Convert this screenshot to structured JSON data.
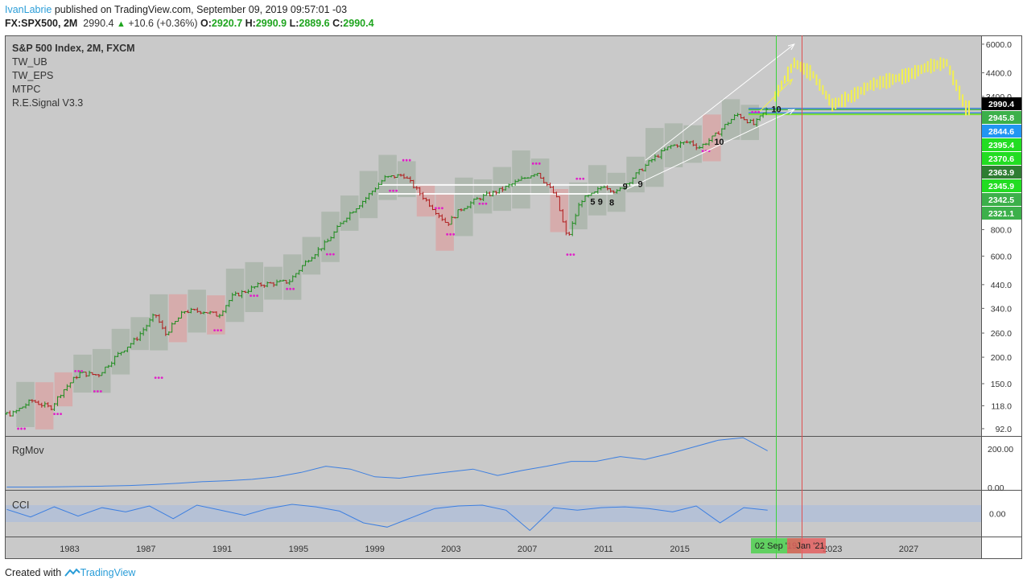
{
  "header": {
    "author": "IvanLabrie",
    "published_text": "published on TradingView.com, September 09, 2019 09:57:01 -03",
    "symbol": "FX:SPX500, 2M",
    "last_price": "2990.4",
    "change": "+10.6 (+0.36%)",
    "o_label": "O:",
    "o_value": "2920.7",
    "h_label": "H:",
    "h_value": "2990.9",
    "l_label": "L:",
    "l_value": "2889.6",
    "c_label": "C:",
    "c_value": "2990.4"
  },
  "legend": {
    "title": "S&P 500 Index, 2M, FXCM",
    "indicators": [
      "TW_UB",
      "TW_EPS",
      "MTPC",
      "R.E.Signal V3.3"
    ]
  },
  "panes": {
    "rgmov_label": "RgMov",
    "cci_label": "CCI"
  },
  "axis_tags": {
    "crosshair_date": "02 Sep '19",
    "end_date": "Jan '21"
  },
  "footer": {
    "created_with": "Created with",
    "brand": "TradingView"
  },
  "colors": {
    "background": "#c9c9c9",
    "up_bar": "#1e8c1e",
    "down_bar": "#b01e1e",
    "projection": "#f2f050",
    "signal_dots": "#e020c8",
    "line_blue": "#3d7fe0",
    "cci_band": "#b2bfd8"
  },
  "chart_data": {
    "type": "line",
    "title": "S&P 500 Index, 2M, FXCM",
    "x_range": [
      1979.6,
      2030.8
    ],
    "y_scale": "log",
    "y_range": [
      85,
      6600
    ],
    "x_ticks": [
      "1983",
      "1987",
      "1991",
      "1995",
      "1999",
      "2003",
      "2007",
      "2011",
      "2015",
      "2023",
      "2027"
    ],
    "y_ticks": [
      "6000.0",
      "4400.0",
      "3400.0",
      "2000.0",
      "800.0",
      "600.0",
      "440.0",
      "340.0",
      "260.0",
      "200.0",
      "150.0",
      "118.0",
      "92.0"
    ],
    "price_labels": [
      {
        "value": "2990.4",
        "y": 2990.4,
        "color": "#000000"
      },
      {
        "value": "2945.8",
        "y": 2945.8,
        "color": "#3cb04a"
      },
      {
        "value": "2844.6",
        "y": 2844.6,
        "color": "#2196f3"
      },
      {
        "value": "2395.4",
        "y": 2395.4,
        "color": "#22dd22"
      },
      {
        "value": "2370.6",
        "y": 2370.6,
        "color": "#22dd22"
      },
      {
        "value": "2363.9",
        "y": 2363.9,
        "color": "#2e7d32"
      },
      {
        "value": "2345.9",
        "y": 2345.9,
        "color": "#22dd22"
      },
      {
        "value": "2342.5",
        "y": 2342.5,
        "color": "#3cb04a"
      },
      {
        "value": "2321.1",
        "y": 2321.1,
        "color": "#3cb04a"
      }
    ],
    "series": [
      {
        "name": "FX:SPX500",
        "points": [
          [
            1980.0,
            108
          ],
          [
            1981.0,
            125
          ],
          [
            1982.0,
            115
          ],
          [
            1982.6,
            138
          ],
          [
            1983.5,
            168
          ],
          [
            1984.5,
            165
          ],
          [
            1985.5,
            205
          ],
          [
            1986.5,
            245
          ],
          [
            1987.5,
            320
          ],
          [
            1988.0,
            255
          ],
          [
            1989.0,
            330
          ],
          [
            1990.0,
            330
          ],
          [
            1990.8,
            315
          ],
          [
            1991.5,
            385
          ],
          [
            1993.0,
            440
          ],
          [
            1994.5,
            455
          ],
          [
            1995.5,
            580
          ],
          [
            1996.5,
            700
          ],
          [
            1997.5,
            920
          ],
          [
            1998.5,
            1120
          ],
          [
            1999.5,
            1400
          ],
          [
            2000.5,
            1450
          ],
          [
            2001.5,
            1150
          ],
          [
            2002.8,
            850
          ],
          [
            2003.5,
            1000
          ],
          [
            2004.5,
            1130
          ],
          [
            2005.5,
            1220
          ],
          [
            2006.5,
            1350
          ],
          [
            2007.5,
            1500
          ],
          [
            2008.5,
            1150
          ],
          [
            2009.1,
            720
          ],
          [
            2009.8,
            1100
          ],
          [
            2010.5,
            1180
          ],
          [
            2011.0,
            1300
          ],
          [
            2011.7,
            1200
          ],
          [
            2012.5,
            1400
          ],
          [
            2013.5,
            1700
          ],
          [
            2014.5,
            1980
          ],
          [
            2015.5,
            2080
          ],
          [
            2016.0,
            1950
          ],
          [
            2016.8,
            2200
          ],
          [
            2017.5,
            2550
          ],
          [
            2018.0,
            2800
          ],
          [
            2018.9,
            2500
          ],
          [
            2019.6,
            2990
          ]
        ]
      },
      {
        "name": "Projection",
        "points": [
          [
            2020.0,
            3400
          ],
          [
            2021.0,
            4900
          ],
          [
            2022.0,
            4300
          ],
          [
            2023.0,
            3100
          ],
          [
            2024.0,
            3400
          ],
          [
            2025.0,
            3850
          ],
          [
            2026.0,
            4050
          ],
          [
            2027.0,
            4300
          ],
          [
            2028.0,
            4700
          ],
          [
            2029.0,
            4900
          ],
          [
            2030.0,
            3000
          ]
        ]
      }
    ],
    "rgmov": {
      "ticks": [
        "200.00",
        "0.00"
      ],
      "values": [
        2,
        2,
        3,
        5,
        7,
        10,
        15,
        22,
        30,
        35,
        42,
        55,
        78,
        110,
        95,
        55,
        48,
        65,
        80,
        95,
        62,
        88,
        110,
        135,
        135,
        160,
        145,
        175,
        210,
        245,
        258,
        190
      ]
    },
    "cci": {
      "ticks": [
        "0.00"
      ],
      "band": [
        -100,
        100
      ],
      "values": [
        50,
        -40,
        80,
        -30,
        70,
        20,
        90,
        -60,
        100,
        40,
        -20,
        60,
        110,
        80,
        30,
        -110,
        -160,
        -50,
        60,
        90,
        100,
        40,
        -200,
        70,
        40,
        70,
        80,
        60,
        20,
        90,
        -110,
        70,
        40
      ]
    }
  }
}
